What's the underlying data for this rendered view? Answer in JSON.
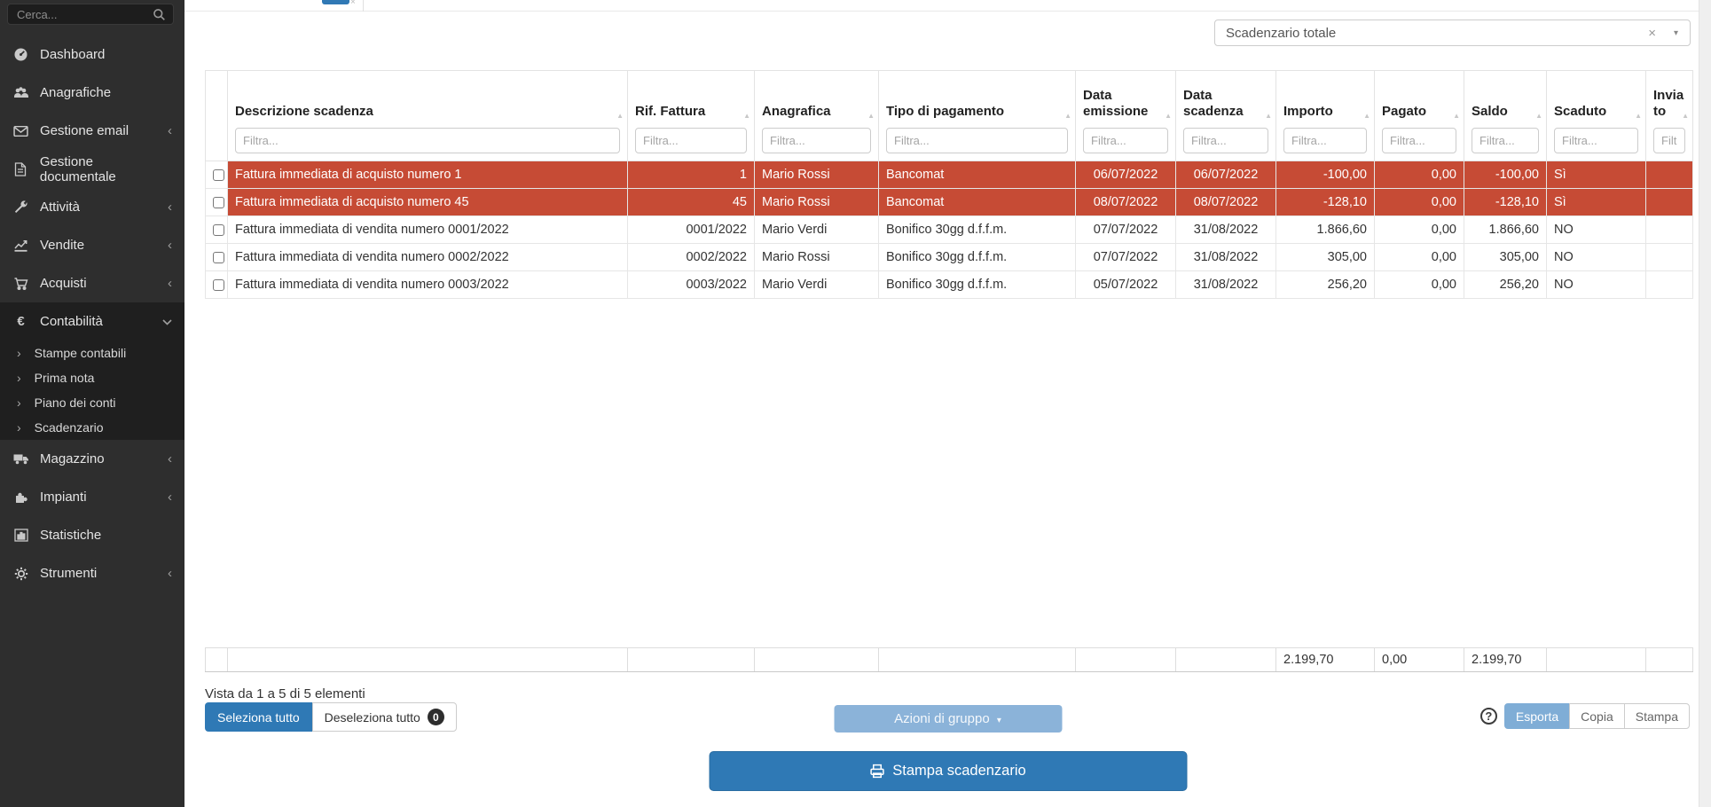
{
  "sidebar": {
    "search_placeholder": "Cerca...",
    "items": [
      {
        "label": "Dashboard",
        "icon": "gauge-icon",
        "chevron": false
      },
      {
        "label": "Anagrafiche",
        "icon": "users-icon",
        "chevron": false
      },
      {
        "label": "Gestione email",
        "icon": "envelope-icon",
        "chevron": true
      },
      {
        "label": "Gestione documentale",
        "icon": "document-icon",
        "chevron": false
      },
      {
        "label": "Attività",
        "icon": "wrench-icon",
        "chevron": true
      },
      {
        "label": "Vendite",
        "icon": "chart-line-icon",
        "chevron": true
      },
      {
        "label": "Acquisti",
        "icon": "cart-icon",
        "chevron": true
      },
      {
        "label": "Contabilità",
        "icon": "euro-icon",
        "expanded": true,
        "children": [
          "Stampe contabili",
          "Prima nota",
          "Piano dei conti",
          "Scadenzario"
        ]
      },
      {
        "label": "Magazzino",
        "icon": "truck-icon",
        "chevron": true
      },
      {
        "label": "Impianti",
        "icon": "puzzle-icon",
        "chevron": true
      },
      {
        "label": "Statistiche",
        "icon": "bar-chart-icon",
        "chevron": false
      },
      {
        "label": "Strumenti",
        "icon": "gear-icon",
        "chevron": true
      }
    ]
  },
  "toolbar": {
    "filter_select_value": "Scadenzario totale"
  },
  "table": {
    "filter_placeholder": "Filtra...",
    "columns": [
      {
        "label": "Descrizione scadenza"
      },
      {
        "label": "Rif. Fattura"
      },
      {
        "label": "Anagrafica"
      },
      {
        "label": "Tipo di pagamento"
      },
      {
        "label": "Data emissione"
      },
      {
        "label": "Data scadenza"
      },
      {
        "label": "Importo"
      },
      {
        "label": "Pagato"
      },
      {
        "label": "Saldo"
      },
      {
        "label": "Scaduto"
      },
      {
        "label": "Inviato"
      }
    ],
    "rows": [
      {
        "overdue": true,
        "cells": [
          "Fattura immediata di acquisto numero 1",
          "1",
          "Mario Rossi",
          "Bancomat",
          "06/07/2022",
          "06/07/2022",
          "-100,00",
          "0,00",
          "-100,00",
          "Sì",
          ""
        ]
      },
      {
        "overdue": true,
        "cells": [
          "Fattura immediata di acquisto numero 45",
          "45",
          "Mario Rossi",
          "Bancomat",
          "08/07/2022",
          "08/07/2022",
          "-128,10",
          "0,00",
          "-128,10",
          "Sì",
          ""
        ]
      },
      {
        "overdue": false,
        "cells": [
          "Fattura immediata di vendita numero 0001/2022",
          "0001/2022",
          "Mario Verdi",
          "Bonifico 30gg d.f.f.m.",
          "07/07/2022",
          "31/08/2022",
          "1.866,60",
          "0,00",
          "1.866,60",
          "NO",
          ""
        ]
      },
      {
        "overdue": false,
        "cells": [
          "Fattura immediata di vendita numero 0002/2022",
          "0002/2022",
          "Mario Rossi",
          "Bonifico 30gg d.f.f.m.",
          "07/07/2022",
          "31/08/2022",
          "305,00",
          "0,00",
          "305,00",
          "NO",
          ""
        ]
      },
      {
        "overdue": false,
        "cells": [
          "Fattura immediata di vendita numero 0003/2022",
          "0003/2022",
          "Mario Verdi",
          "Bonifico 30gg d.f.f.m.",
          "05/07/2022",
          "31/08/2022",
          "256,20",
          "0,00",
          "256,20",
          "NO",
          ""
        ]
      }
    ],
    "totals": {
      "importo": "2.199,70",
      "pagato": "0,00",
      "saldo": "2.199,70"
    }
  },
  "footer": {
    "info": "Vista da 1 a 5 di 5 elementi",
    "select_all": "Seleziona tutto",
    "deselect_all": "Deseleziona tutto",
    "deselect_count": "0",
    "group_actions": "Azioni di gruppo",
    "export": "Esporta",
    "copy": "Copia",
    "print": "Stampa",
    "print_schedule": "Stampa scadenzario"
  },
  "icons": {
    "close": "×",
    "caret": "▾",
    "sort": "▲",
    "help": "?",
    "chevron_left": "‹",
    "chevron_right": "›"
  },
  "colors": {
    "accent_blue": "#2f79b5",
    "light_blue": "#7fadd6",
    "overdue_red": "#c64b35",
    "sidebar_bg": "#2e2e2e"
  }
}
